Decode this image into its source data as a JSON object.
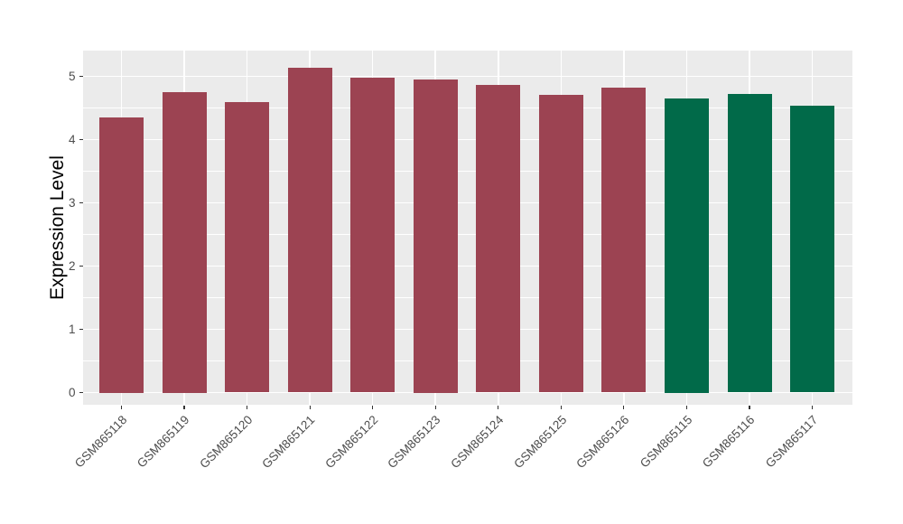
{
  "chart_data": {
    "type": "bar",
    "title": "",
    "xlabel": "",
    "ylabel": "Expression Level",
    "categories": [
      "GSM865118",
      "GSM865119",
      "GSM865120",
      "GSM865121",
      "GSM865122",
      "GSM865123",
      "GSM865124",
      "GSM865125",
      "GSM865126",
      "GSM865115",
      "GSM865116",
      "GSM865117"
    ],
    "values": [
      4.35,
      4.75,
      4.59,
      5.14,
      4.98,
      4.95,
      4.87,
      4.71,
      4.82,
      4.65,
      4.72,
      4.54
    ],
    "bar_color_index": [
      0,
      0,
      0,
      0,
      0,
      0,
      0,
      0,
      0,
      1,
      1,
      1
    ],
    "series": [
      {
        "name": "maroon-group",
        "color": "#9C4352",
        "categories": [
          "GSM865118",
          "GSM865119",
          "GSM865120",
          "GSM865121",
          "GSM865122",
          "GSM865123",
          "GSM865124",
          "GSM865125",
          "GSM865126"
        ],
        "values": [
          4.35,
          4.75,
          4.59,
          5.14,
          4.98,
          4.95,
          4.87,
          4.71,
          4.82
        ]
      },
      {
        "name": "green-group",
        "color": "#016A49",
        "categories": [
          "GSM865115",
          "GSM865116",
          "GSM865117"
        ],
        "values": [
          4.65,
          4.72,
          4.54
        ]
      }
    ],
    "yticks": [
      "0",
      "1",
      "2",
      "3",
      "4",
      "5"
    ],
    "ytick_values": [
      0,
      1,
      2,
      3,
      4,
      5
    ],
    "minor_ytick_values": [
      0.5,
      1.5,
      2.5,
      3.5,
      4.5
    ],
    "ylim": [
      -0.19,
      5.39
    ],
    "grid": "major-and-minor-horizontal, major-vertical-at-bar-centers",
    "legend": "none",
    "colors": {
      "panel_bg": "#EBEBEB",
      "grid": "#FFFFFF",
      "tick_mark": "#333333",
      "tick_label": "#4D4D4D",
      "axis_title": "#000000"
    }
  }
}
